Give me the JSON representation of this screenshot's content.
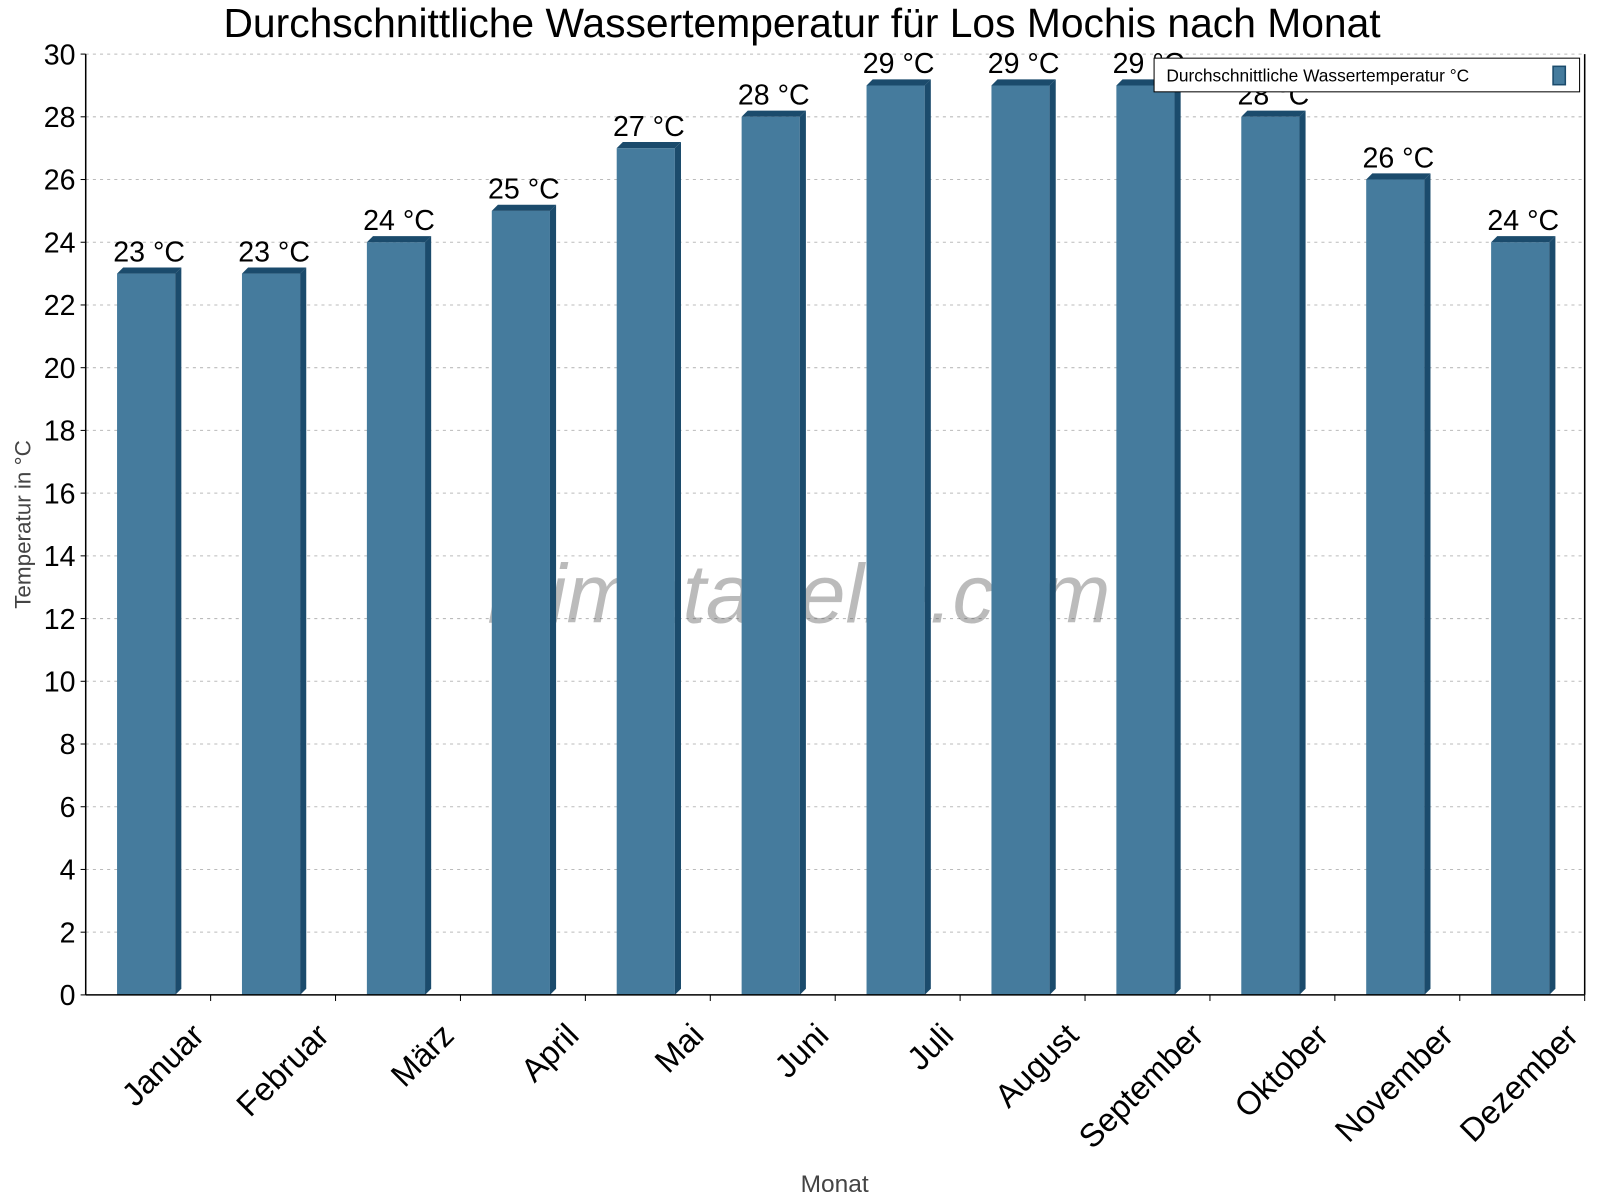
{
  "chart_data": {
    "type": "bar",
    "title": "Durchschnittliche Wassertemperatur für Los Mochis nach Monat",
    "xlabel": "Monat",
    "ylabel": "Temperatur in °C",
    "categories": [
      "Januar",
      "Februar",
      "März",
      "April",
      "Mai",
      "Juni",
      "Juli",
      "August",
      "September",
      "Oktober",
      "November",
      "Dezember"
    ],
    "series": [
      {
        "name": "Durchschnittliche Wassertemperatur °C",
        "values": [
          23,
          23,
          24,
          25,
          27,
          28,
          29,
          29,
          29,
          28,
          26,
          24
        ],
        "color": "#457b9d",
        "side_color": "#1b4b6c"
      }
    ],
    "data_labels": [
      "23 °C",
      "23 °C",
      "24 °C",
      "25 °C",
      "27 °C",
      "28 °C",
      "29 °C",
      "29 °C",
      "29 °C",
      "28 °C",
      "26 °C",
      "24 °C"
    ],
    "ylim": [
      0,
      30
    ],
    "yticks": [
      0,
      2,
      4,
      6,
      8,
      10,
      12,
      14,
      16,
      18,
      20,
      22,
      24,
      26,
      28,
      30
    ],
    "grid": true,
    "legend_position": "top-right",
    "watermark": "klimatabelle.com"
  }
}
